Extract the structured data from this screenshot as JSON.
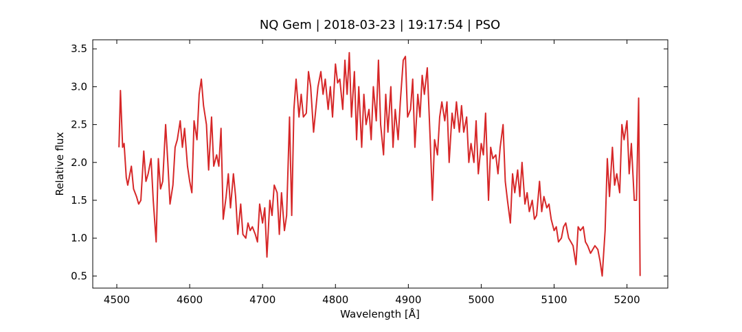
{
  "chart_data": {
    "type": "line",
    "title": "NQ Gem | 2018-03-23 | 19:17:54 | PSO",
    "x_label": "Wavelength [Å]",
    "y_label": "Relative flux",
    "x": [
      4503,
      4505,
      4508,
      4510,
      4513,
      4515,
      4520,
      4523,
      4527,
      4530,
      4533,
      4537,
      4540,
      4543,
      4547,
      4550,
      4554,
      4557,
      4560,
      4563,
      4567,
      4570,
      4573,
      4577,
      4580,
      4583,
      4587,
      4590,
      4593,
      4597,
      4600,
      4603,
      4606,
      4610,
      4613,
      4616,
      4619,
      4623,
      4626,
      4630,
      4633,
      4637,
      4640,
      4643,
      4646,
      4650,
      4653,
      4656,
      4660,
      4663,
      4666,
      4670,
      4673,
      4677,
      4680,
      4683,
      4686,
      4690,
      4693,
      4696,
      4700,
      4703,
      4706,
      4710,
      4713,
      4716,
      4720,
      4723,
      4726,
      4730,
      4733,
      4737,
      4740,
      4743,
      4746,
      4750,
      4753,
      4756,
      4760,
      4763,
      4766,
      4770,
      4773,
      4776,
      4780,
      4783,
      4786,
      4790,
      4793,
      4796,
      4800,
      4803,
      4806,
      4810,
      4813,
      4816,
      4819,
      4822,
      4826,
      4829,
      4832,
      4836,
      4839,
      4842,
      4846,
      4849,
      4852,
      4856,
      4859,
      4862,
      4866,
      4869,
      4872,
      4876,
      4879,
      4882,
      4886,
      4889,
      4893,
      4896,
      4899,
      4903,
      4906,
      4909,
      4913,
      4916,
      4919,
      4922,
      4926,
      4930,
      4933,
      4936,
      4940,
      4943,
      4946,
      4950,
      4953,
      4956,
      4960,
      4963,
      4966,
      4970,
      4973,
      4976,
      4980,
      4983,
      4986,
      4990,
      4993,
      4996,
      5000,
      5003,
      5006,
      5010,
      5013,
      5016,
      5020,
      5023,
      5026,
      5030,
      5033,
      5036,
      5040,
      5043,
      5046,
      5050,
      5053,
      5056,
      5060,
      5063,
      5066,
      5070,
      5073,
      5076,
      5080,
      5083,
      5086,
      5090,
      5093,
      5096,
      5100,
      5103,
      5106,
      5110,
      5113,
      5116,
      5120,
      5123,
      5126,
      5130,
      5133,
      5136,
      5140,
      5143,
      5146,
      5150,
      5153,
      5156,
      5160,
      5163,
      5166,
      5170,
      5173,
      5176,
      5180,
      5183,
      5186,
      5190,
      5193,
      5196,
      5200,
      5203,
      5206,
      5210,
      5213,
      5216,
      5218
    ],
    "series": [
      {
        "color": "#d62728",
        "values": [
          2.2,
          2.95,
          2.2,
          2.25,
          1.8,
          1.7,
          1.95,
          1.65,
          1.55,
          1.45,
          1.5,
          2.15,
          1.75,
          1.85,
          2.05,
          1.5,
          0.95,
          2.05,
          1.65,
          1.75,
          2.5,
          2.0,
          1.45,
          1.7,
          2.2,
          2.3,
          2.55,
          2.2,
          2.45,
          1.95,
          1.75,
          1.6,
          2.55,
          2.3,
          2.9,
          3.1,
          2.75,
          2.5,
          1.9,
          2.6,
          1.95,
          2.1,
          1.95,
          2.45,
          1.25,
          1.55,
          1.85,
          1.4,
          1.85,
          1.55,
          1.05,
          1.45,
          1.05,
          1.0,
          1.2,
          1.1,
          1.15,
          1.05,
          0.95,
          1.45,
          1.2,
          1.4,
          0.75,
          1.5,
          1.3,
          1.7,
          1.6,
          1.05,
          1.6,
          1.1,
          1.3,
          2.6,
          1.3,
          2.7,
          3.1,
          2.6,
          2.9,
          2.6,
          2.65,
          3.2,
          3.0,
          2.4,
          2.7,
          3.0,
          3.2,
          2.9,
          3.1,
          2.7,
          3.0,
          2.6,
          3.3,
          3.05,
          3.1,
          2.7,
          3.35,
          2.9,
          3.45,
          2.6,
          3.2,
          2.3,
          3.0,
          2.2,
          2.9,
          2.5,
          2.7,
          2.3,
          3.0,
          2.55,
          3.35,
          2.5,
          2.1,
          2.9,
          2.4,
          3.0,
          2.2,
          2.7,
          2.3,
          2.8,
          3.35,
          3.4,
          2.6,
          2.7,
          3.1,
          2.2,
          2.9,
          2.6,
          3.15,
          2.9,
          3.25,
          2.3,
          1.5,
          2.3,
          2.1,
          2.6,
          2.8,
          2.55,
          2.8,
          2.0,
          2.65,
          2.45,
          2.8,
          2.4,
          2.75,
          2.4,
          2.6,
          2.0,
          2.25,
          2.0,
          2.55,
          1.85,
          2.25,
          2.1,
          2.65,
          1.5,
          2.2,
          2.05,
          2.1,
          1.85,
          2.2,
          2.5,
          1.75,
          1.5,
          1.2,
          1.85,
          1.6,
          1.9,
          1.55,
          2.0,
          1.45,
          1.6,
          1.35,
          1.5,
          1.25,
          1.3,
          1.75,
          1.35,
          1.55,
          1.4,
          1.45,
          1.25,
          1.1,
          1.15,
          0.95,
          1.0,
          1.15,
          1.2,
          1.0,
          0.95,
          0.9,
          0.65,
          1.15,
          1.1,
          1.15,
          0.95,
          0.9,
          0.8,
          0.85,
          0.9,
          0.85,
          0.7,
          0.5,
          1.1,
          2.05,
          1.55,
          2.2,
          1.7,
          1.85,
          1.6,
          2.5,
          2.3,
          2.55,
          1.85,
          2.25,
          1.5,
          1.5,
          2.85,
          0.5
        ]
      }
    ],
    "xlim": [
      4467,
      5256
    ],
    "ylim": [
      0.34,
      3.62
    ],
    "xticks": [
      4500,
      4600,
      4700,
      4800,
      4900,
      5000,
      5100,
      5200
    ],
    "yticks": [
      0.5,
      {
        "value": 1,
        "label": "1.0"
      },
      1.5,
      {
        "value": 2,
        "label": "2.0"
      },
      2.5,
      {
        "value": 3,
        "label": "3.0"
      },
      3.5
    ]
  }
}
